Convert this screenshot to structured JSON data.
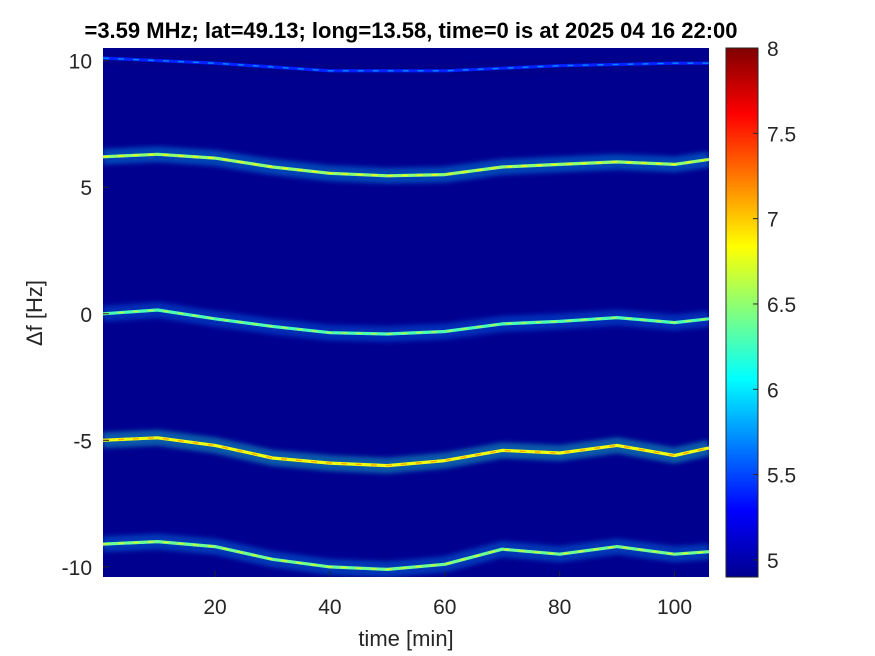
{
  "chart_data": {
    "type": "heatmap",
    "title": "=3.59 MHz;  lat=49.13; long=13.58, time=0 is at 2025 04 16 22:00",
    "xlabel": "time [min]",
    "ylabel": "Δf [Hz]",
    "xlim": [
      0.5,
      106
    ],
    "ylim": [
      -10.4,
      10.5
    ],
    "xticks": [
      20,
      40,
      60,
      80,
      100
    ],
    "xtick_labels": [
      "20",
      "40",
      "60",
      "80",
      "100"
    ],
    "yticks": [
      10,
      5,
      0,
      -5,
      -10
    ],
    "ytick_labels": [
      "10",
      "5",
      "0",
      "-5",
      "-10"
    ],
    "colorbar": {
      "colormap": "jet",
      "range": [
        4.9,
        8
      ],
      "ticks": [
        8,
        7.5,
        7,
        6.5,
        6,
        5.5,
        5
      ],
      "tick_labels": [
        "8",
        "7.5",
        "7",
        "6.5",
        "6",
        "5.5",
        "5"
      ]
    },
    "background_value": 4.95,
    "grid": false,
    "series": [
      {
        "x": [
          0.5,
          10,
          20,
          30,
          40,
          50,
          60,
          70,
          80,
          90,
          100,
          106
        ],
        "y": [
          -9.1,
          -9.0,
          -9.2,
          -9.7,
          -10.0,
          -10.1,
          -9.9,
          -9.3,
          -9.5,
          -9.2,
          -9.5,
          -9.4
        ],
        "value": 6.7
      },
      {
        "x": [
          0.5,
          10,
          20,
          30,
          40,
          50,
          60,
          70,
          80,
          90,
          100,
          106
        ],
        "y": [
          -5.0,
          -4.9,
          -5.2,
          -5.7,
          -5.9,
          -6.0,
          -5.8,
          -5.4,
          -5.5,
          -5.2,
          -5.6,
          -5.3
        ],
        "value": 7.1
      },
      {
        "x": [
          0.5,
          10,
          20,
          30,
          40,
          50,
          60,
          70,
          80,
          90,
          100,
          106
        ],
        "y": [
          0.0,
          0.15,
          -0.2,
          -0.5,
          -0.75,
          -0.8,
          -0.7,
          -0.4,
          -0.3,
          -0.15,
          -0.35,
          -0.2
        ],
        "value": 6.6
      },
      {
        "x": [
          0.5,
          10,
          20,
          30,
          40,
          50,
          60,
          70,
          80,
          90,
          100,
          106
        ],
        "y": [
          6.2,
          6.3,
          6.15,
          5.8,
          5.55,
          5.45,
          5.5,
          5.8,
          5.9,
          6.0,
          5.9,
          6.1
        ],
        "value": 6.8
      },
      {
        "x": [
          0.5,
          20,
          40,
          60,
          80,
          100,
          106
        ],
        "y": [
          10.1,
          9.9,
          9.6,
          9.6,
          9.8,
          9.9,
          9.9
        ],
        "value": 5.7
      }
    ]
  }
}
